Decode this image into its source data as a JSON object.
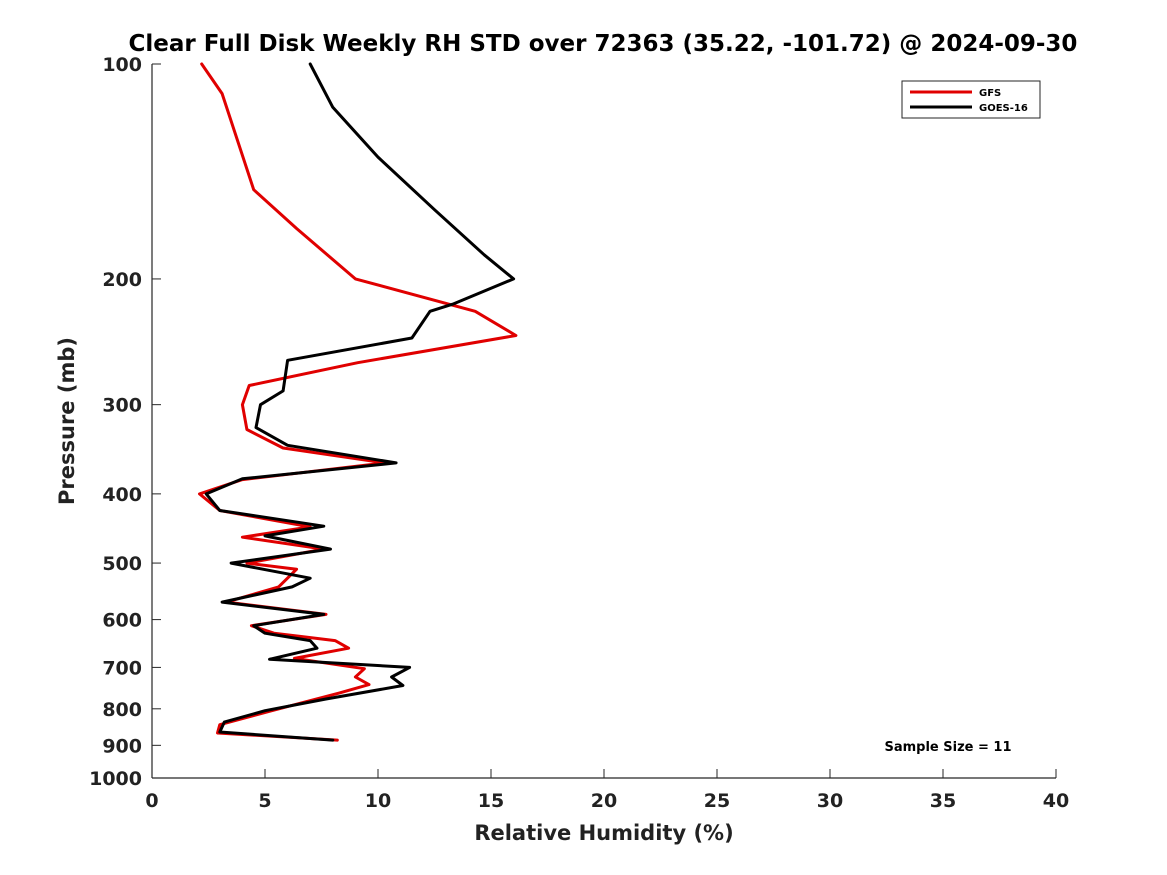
{
  "chart_data": {
    "type": "line",
    "title": "Clear Full Disk Weekly RH STD over 72363 (35.22, -101.72) @ 2024-09-30",
    "xlabel": "Relative Humidity (%)",
    "ylabel": "Pressure (mb)",
    "xlim": [
      0,
      40
    ],
    "ylim": [
      100,
      1000
    ],
    "yscale": "log",
    "y_reversed": true,
    "xticks": [
      0,
      5,
      10,
      15,
      20,
      25,
      30,
      35,
      40
    ],
    "yticks": [
      100,
      200,
      300,
      400,
      500,
      600,
      700,
      800,
      900,
      1000
    ],
    "legend_position": "top-right",
    "annotation": "Sample Size = 11",
    "series": [
      {
        "name": "GFS",
        "color": "#e00000",
        "x": [
          2.2,
          3.1,
          4.5,
          6.4,
          9.0,
          14.3,
          16.1,
          9.1,
          4.3,
          4.0,
          4.2,
          5.8,
          10.3,
          4.0,
          2.1,
          3.0,
          7.0,
          4.0,
          7.6,
          4.2,
          6.4,
          5.6,
          3.3,
          7.7,
          4.4,
          5.4,
          8.1,
          8.7,
          6.3,
          9.4,
          9.0,
          9.6,
          8.3,
          5.3,
          3.0,
          2.9,
          8.2
        ],
        "y": [
          100,
          110,
          150,
          170,
          200,
          222,
          240,
          262,
          282,
          300,
          325,
          345,
          362,
          382,
          400,
          422,
          445,
          460,
          478,
          500,
          510,
          540,
          567,
          590,
          612,
          627,
          642,
          658,
          680,
          703,
          722,
          740,
          760,
          805,
          842,
          865,
          885
        ]
      },
      {
        "name": "GOES-16",
        "color": "#000000",
        "x": [
          7.0,
          8.0,
          10.0,
          12.5,
          14.7,
          16.0,
          13.3,
          12.3,
          11.5,
          6.0,
          5.8,
          4.8,
          4.6,
          6.0,
          10.8,
          4.0,
          2.4,
          3.0,
          7.6,
          5.0,
          7.9,
          3.5,
          7.0,
          6.2,
          3.1,
          7.6,
          4.5,
          5.0,
          7.0,
          7.3,
          5.2,
          11.4,
          10.6,
          11.1,
          7.7,
          5.0,
          3.2,
          3.0,
          8.0
        ],
        "y": [
          100,
          115,
          135,
          160,
          185,
          200,
          217,
          222,
          242,
          260,
          287,
          300,
          323,
          342,
          362,
          381,
          400,
          422,
          444,
          458,
          478,
          500,
          525,
          540,
          567,
          590,
          612,
          627,
          642,
          658,
          682,
          700,
          722,
          742,
          775,
          805,
          835,
          862,
          885
        ]
      }
    ]
  }
}
